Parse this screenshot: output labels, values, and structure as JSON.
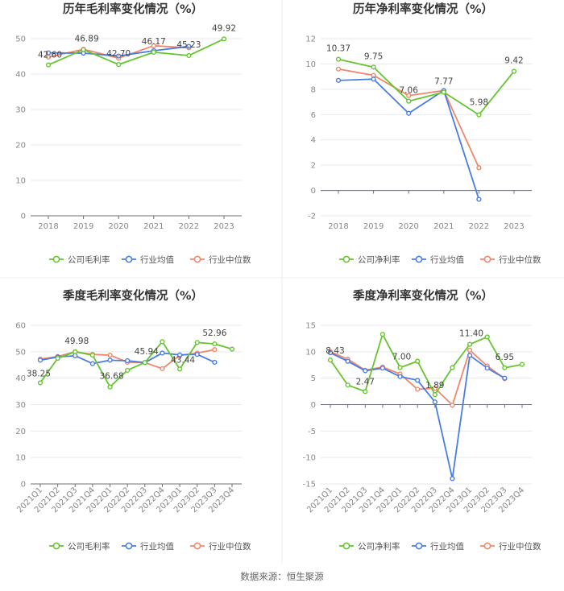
{
  "colors": {
    "company": "#66c52f",
    "industry_avg": "#4a7de3",
    "industry_median": "#f0876a"
  },
  "chart_data": [
    {
      "id": "annual-gross-margin",
      "type": "line",
      "title": "历年毛利率变化情况（%）",
      "categories": [
        "2018",
        "2019",
        "2020",
        "2021",
        "2022",
        "2023"
      ],
      "ylim": [
        0,
        50
      ],
      "yticks": [
        0,
        10,
        20,
        30,
        40,
        50
      ],
      "series": [
        {
          "name": "公司毛利率",
          "key": "company",
          "values": [
            42.6,
            46.89,
            42.7,
            46.17,
            45.23,
            49.92
          ]
        },
        {
          "name": "行业均值",
          "key": "industry_avg",
          "values": [
            46.0,
            45.9,
            45.1,
            46.6,
            47.8,
            null
          ]
        },
        {
          "name": "行业中位数",
          "key": "industry_median",
          "values": [
            44.8,
            47.0,
            44.5,
            48.0,
            47.4,
            null
          ]
        }
      ],
      "labels": [
        {
          "i": 0,
          "text": "42.60"
        },
        {
          "i": 1,
          "text": "46.89"
        },
        {
          "i": 2,
          "text": "42.70"
        },
        {
          "i": 3,
          "text": "46.17"
        },
        {
          "i": 4,
          "text": "45.23"
        },
        {
          "i": 5,
          "text": "49.92"
        }
      ]
    },
    {
      "id": "annual-net-margin",
      "type": "line",
      "title": "历年净利率变化情况（%）",
      "categories": [
        "2018",
        "2019",
        "2020",
        "2021",
        "2022",
        "2023"
      ],
      "ylim": [
        -2,
        12
      ],
      "yticks": [
        -2,
        0,
        2,
        4,
        6,
        8,
        10,
        12
      ],
      "series": [
        {
          "name": "公司净利率",
          "key": "company",
          "values": [
            10.37,
            9.75,
            7.06,
            7.77,
            5.98,
            9.42
          ]
        },
        {
          "name": "行业均值",
          "key": "industry_avg",
          "values": [
            8.7,
            8.8,
            6.1,
            7.9,
            -0.7,
            null
          ]
        },
        {
          "name": "行业中位数",
          "key": "industry_median",
          "values": [
            9.6,
            9.1,
            7.5,
            7.9,
            1.8,
            null
          ]
        }
      ],
      "labels": [
        {
          "i": 0,
          "text": "10.37"
        },
        {
          "i": 1,
          "text": "9.75"
        },
        {
          "i": 2,
          "text": "7.06"
        },
        {
          "i": 3,
          "text": "7.77"
        },
        {
          "i": 4,
          "text": "5.98"
        },
        {
          "i": 5,
          "text": "9.42"
        }
      ]
    },
    {
      "id": "quarterly-gross-margin",
      "type": "line",
      "title": "季度毛利率变化情况（%）",
      "categories": [
        "2021Q1",
        "2021Q2",
        "2021Q3",
        "2021Q4",
        "2022Q1",
        "2022Q2",
        "2022Q3",
        "2022Q4",
        "2023Q1",
        "2023Q2",
        "2023Q3",
        "2023Q4"
      ],
      "rotate_ticks": true,
      "ylim": [
        0,
        60
      ],
      "yticks": [
        0,
        10,
        20,
        30,
        40,
        50,
        60
      ],
      "series": [
        {
          "name": "公司毛利率",
          "key": "company",
          "values": [
            38.25,
            47.5,
            49.98,
            48.7,
            36.68,
            43.0,
            45.94,
            53.8,
            43.44,
            53.5,
            52.96,
            51.0
          ]
        },
        {
          "name": "行业均值",
          "key": "industry_avg",
          "values": [
            46.8,
            48.0,
            48.5,
            45.5,
            46.8,
            46.6,
            45.9,
            49.5,
            48.8,
            49.0,
            46.0,
            null
          ]
        },
        {
          "name": "行业中位数",
          "key": "industry_median",
          "values": [
            47.2,
            48.2,
            50.0,
            49.0,
            48.7,
            46.0,
            45.9,
            43.6,
            48.6,
            49.5,
            50.8,
            null
          ]
        }
      ],
      "labels": [
        {
          "i": 0,
          "text": "38.25"
        },
        {
          "i": 2,
          "text": "49.98"
        },
        {
          "i": 4,
          "text": "36.68"
        },
        {
          "i": 6,
          "text": "45.94"
        },
        {
          "i": 8,
          "text": "43.44"
        },
        {
          "i": 10,
          "text": "52.96"
        }
      ]
    },
    {
      "id": "quarterly-net-margin",
      "type": "line",
      "title": "季度净利率变化情况（%）",
      "categories": [
        "2021Q1",
        "2021Q2",
        "2021Q3",
        "2021Q4",
        "2022Q1",
        "2022Q2",
        "2022Q3",
        "2022Q4",
        "2023Q1",
        "2023Q2",
        "2023Q3",
        "2023Q4"
      ],
      "rotate_ticks": true,
      "ylim": [
        -15,
        15
      ],
      "yticks": [
        -15,
        -10,
        -5,
        0,
        5,
        10,
        15
      ],
      "series": [
        {
          "name": "公司净利率",
          "key": "company",
          "values": [
            8.43,
            3.7,
            2.47,
            13.3,
            7.0,
            8.2,
            1.89,
            7.0,
            11.4,
            12.8,
            6.95,
            7.6
          ]
        },
        {
          "name": "行业均值",
          "key": "industry_avg",
          "values": [
            9.8,
            8.2,
            6.4,
            6.9,
            5.3,
            4.6,
            0.5,
            -14.0,
            9.3,
            6.9,
            5.0,
            null
          ]
        },
        {
          "name": "行业中位数",
          "key": "industry_median",
          "values": [
            10.0,
            8.6,
            6.5,
            7.1,
            5.8,
            2.9,
            3.1,
            -0.1,
            10.3,
            7.3,
            4.9,
            null
          ]
        }
      ],
      "labels": [
        {
          "i": 0,
          "text": "8.43"
        },
        {
          "i": 2,
          "text": "2.47"
        },
        {
          "i": 4,
          "text": "7.00"
        },
        {
          "i": 6,
          "text": "1.89"
        },
        {
          "i": 8,
          "text": "11.40"
        },
        {
          "i": 10,
          "text": "6.95"
        }
      ]
    }
  ],
  "source": "数据来源：恒生聚源"
}
